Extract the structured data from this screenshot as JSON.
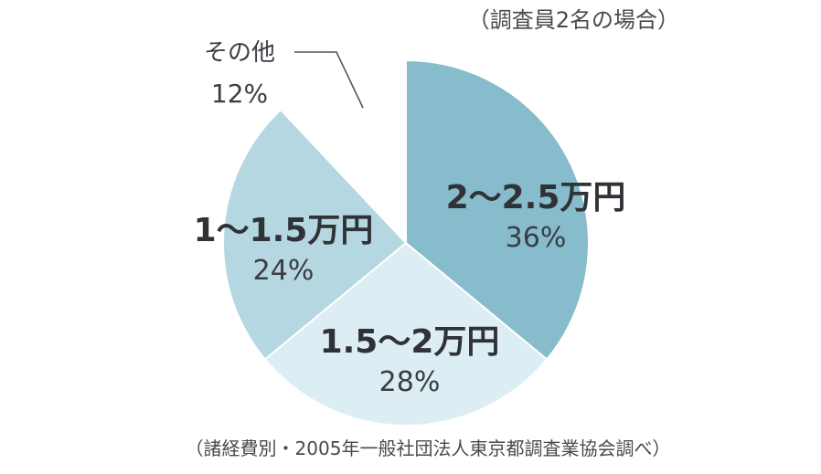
{
  "chart_data": {
    "type": "pie",
    "subtitle": "（調査員2名の場合）",
    "source": "（諸経費別・2005年一般社団法人東京都調査業協会調べ）",
    "slices": [
      {
        "label": "2～2.5万円",
        "value": 36,
        "value_label": "36%",
        "color": "#86bccb"
      },
      {
        "label": "1.5～2万円",
        "value": 28,
        "value_label": "28%",
        "color": "#dceef3"
      },
      {
        "label": "1～1.5万円",
        "value": 24,
        "value_label": "24%",
        "color": "#b5d7e1"
      },
      {
        "label": "その他",
        "value": 12,
        "value_label": "12%",
        "color": "#ffffff"
      }
    ],
    "start_angle": "12 o'clock",
    "direction": "clockwise"
  }
}
